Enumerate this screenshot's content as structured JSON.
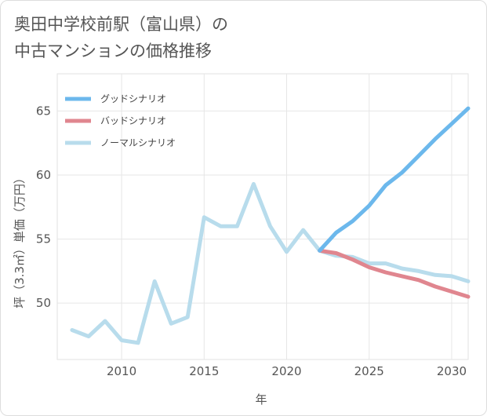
{
  "title_lines": [
    "奥田中学校前駅（富山県）の",
    "中古マンションの価格推移"
  ],
  "chart_data": {
    "type": "line",
    "xlabel": "年",
    "ylabel": "坪（3.3㎡）単価（万円）",
    "xlim": [
      2006.1,
      2031
    ],
    "ylim": [
      45.6,
      67.9
    ],
    "x_ticks": [
      2010,
      2015,
      2020,
      2025,
      2030
    ],
    "y_ticks": [
      50,
      55,
      60,
      65
    ],
    "grid": true,
    "legend_position": "top-left",
    "series": [
      {
        "name": "グッドシナリオ",
        "color": "#6cb8ec",
        "points": [
          [
            2022,
            54.1
          ],
          [
            2023,
            55.5
          ],
          [
            2024,
            56.4
          ],
          [
            2025,
            57.6
          ],
          [
            2026,
            59.2
          ],
          [
            2027,
            60.2
          ],
          [
            2028,
            61.5
          ],
          [
            2029,
            62.8
          ],
          [
            2030,
            64.0
          ],
          [
            2031,
            65.2
          ]
        ]
      },
      {
        "name": "バッドシナリオ",
        "color": "#e0868f",
        "points": [
          [
            2022,
            54.1
          ],
          [
            2023,
            53.9
          ],
          [
            2024,
            53.4
          ],
          [
            2025,
            52.8
          ],
          [
            2026,
            52.4
          ],
          [
            2027,
            52.1
          ],
          [
            2028,
            51.8
          ],
          [
            2029,
            51.3
          ],
          [
            2030,
            50.9
          ],
          [
            2031,
            50.5
          ]
        ]
      },
      {
        "name": "ノーマルシナリオ",
        "color": "#b8dcec",
        "points": [
          [
            2007,
            47.9
          ],
          [
            2008,
            47.4
          ],
          [
            2009,
            48.6
          ],
          [
            2010,
            47.1
          ],
          [
            2011,
            46.9
          ],
          [
            2012,
            51.7
          ],
          [
            2013,
            48.4
          ],
          [
            2014,
            48.9
          ],
          [
            2015,
            56.7
          ],
          [
            2016,
            56.0
          ],
          [
            2017,
            56.0
          ],
          [
            2018,
            59.3
          ],
          [
            2019,
            56.0
          ],
          [
            2020,
            54.0
          ],
          [
            2021,
            55.7
          ],
          [
            2022,
            54.1
          ],
          [
            2023,
            53.7
          ],
          [
            2024,
            53.6
          ],
          [
            2025,
            53.1
          ],
          [
            2026,
            53.1
          ],
          [
            2027,
            52.7
          ],
          [
            2028,
            52.5
          ],
          [
            2029,
            52.2
          ],
          [
            2030,
            52.1
          ],
          [
            2031,
            51.7
          ]
        ]
      }
    ]
  }
}
